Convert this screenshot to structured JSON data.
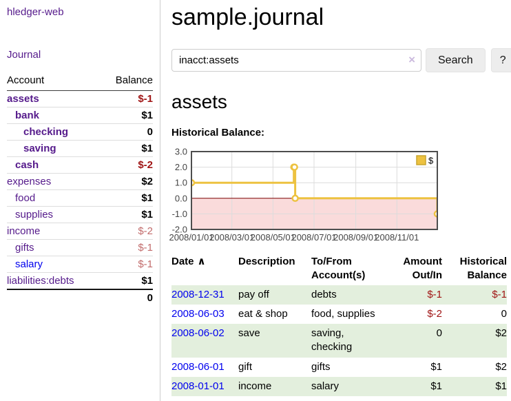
{
  "colors": {
    "link_purple": "#551a8b",
    "link_blue": "#0000ee",
    "negative_strong": "#a01515",
    "negative_muted": "#c26c6c",
    "row_green": "#e3efdd",
    "chart_line": "#edc240",
    "chart_negative_fill": "#fadbdb",
    "chart_zero_line": "#7a0000",
    "chart_border": "#4d4d4d",
    "chart_grid": "#dcdcdc",
    "chart_tick_text": "#444444"
  },
  "sidebar": {
    "brand": "hledger-web",
    "nav": {
      "journal": "Journal"
    },
    "accounts": {
      "headers": {
        "account": "Account",
        "balance": "Balance"
      },
      "rows": [
        {
          "account": "assets",
          "balance": "$-1",
          "depth": 0,
          "matched": true,
          "negative": "strong"
        },
        {
          "account": "bank",
          "balance": "$1",
          "depth": 1,
          "matched": true,
          "negative": ""
        },
        {
          "account": "checking",
          "balance": "0",
          "depth": 2,
          "matched": true,
          "negative": ""
        },
        {
          "account": "saving",
          "balance": "$1",
          "depth": 2,
          "matched": true,
          "negative": ""
        },
        {
          "account": "cash",
          "balance": "$-2",
          "depth": 1,
          "matched": true,
          "negative": "strong"
        },
        {
          "account": "expenses",
          "balance": "$2",
          "depth": 0,
          "matched": false,
          "negative": ""
        },
        {
          "account": "food",
          "balance": "$1",
          "depth": 1,
          "matched": false,
          "negative": ""
        },
        {
          "account": "supplies",
          "balance": "$1",
          "depth": 1,
          "matched": false,
          "negative": ""
        },
        {
          "account": "income",
          "balance": "$-2",
          "depth": 0,
          "matched": false,
          "negative": "muted"
        },
        {
          "account": "gifts",
          "balance": "$-1",
          "depth": 1,
          "matched": false,
          "negative": "muted"
        },
        {
          "account": "salary",
          "balance": "$-1",
          "depth": 1,
          "matched": false,
          "negative": "muted",
          "unvisited": true
        },
        {
          "account": "liabilities:debts",
          "balance": "$1",
          "depth": 0,
          "matched": false,
          "negative": ""
        }
      ],
      "total": "0"
    }
  },
  "header": {
    "title": "sample.journal"
  },
  "search": {
    "value": "inacct:assets",
    "clear_icon": "×",
    "search_button": "Search",
    "help_button": "?"
  },
  "register": {
    "heading": "assets",
    "chart_label": "Historical Balance:"
  },
  "chart_data": {
    "type": "line",
    "title": "Historical Balance",
    "steps": true,
    "xlim": [
      "2008-01-01",
      "2008-12-31"
    ],
    "ylim": [
      -2,
      3
    ],
    "x_ticks": [
      {
        "date": "2008-01-01",
        "label": "2008/01/01"
      },
      {
        "date": "2008-03-01",
        "label": "2008/03/01"
      },
      {
        "date": "2008-05-01",
        "label": "2008/05/01"
      },
      {
        "date": "2008-07-01",
        "label": "2008/07/01"
      },
      {
        "date": "2008-09-01",
        "label": "2008/09/01"
      },
      {
        "date": "2008-11-01",
        "label": "2008/11/01"
      }
    ],
    "y_ticks": [
      {
        "value": 3,
        "label": "3.0"
      },
      {
        "value": 2,
        "label": "2.0"
      },
      {
        "value": 1,
        "label": "1.0"
      },
      {
        "value": 0,
        "label": "0.0"
      },
      {
        "value": -1,
        "label": "-1.0"
      },
      {
        "value": -2,
        "label": "-2.0"
      }
    ],
    "legend": {
      "label": "$",
      "position": "top-right"
    },
    "grid": true,
    "negative_region_shaded": true,
    "series": [
      {
        "name": "$",
        "points": [
          {
            "date": "2008-01-01",
            "value": 1
          },
          {
            "date": "2008-06-01",
            "value": 2
          },
          {
            "date": "2008-06-02",
            "value": 2
          },
          {
            "date": "2008-06-03",
            "value": 0
          },
          {
            "date": "2008-12-31",
            "value": -1
          }
        ]
      }
    ]
  },
  "transactions": {
    "headers": [
      {
        "lines": [
          "Date"
        ],
        "sort": "∧",
        "align": "left"
      },
      {
        "lines": [
          "Description"
        ],
        "align": "left"
      },
      {
        "lines": [
          "To/From",
          "Account(s)"
        ],
        "align": "left"
      },
      {
        "lines": [
          "Amount",
          "Out/In"
        ],
        "align": "right"
      },
      {
        "lines": [
          "Historical",
          "Balance"
        ],
        "align": "right"
      }
    ],
    "rows": [
      {
        "date": "2008-12-31",
        "description": "pay off",
        "accounts": "debts",
        "amount": "$-1",
        "balance": "$-1",
        "amount_negative": true,
        "balance_negative": true,
        "green": true
      },
      {
        "date": "2008-06-03",
        "description": "eat & shop",
        "accounts": "food, supplies",
        "amount": "$-2",
        "balance": "0",
        "amount_negative": true,
        "balance_negative": false,
        "green": false
      },
      {
        "date": "2008-06-02",
        "description": "save",
        "accounts": "saving, checking",
        "amount": "0",
        "balance": "$2",
        "amount_negative": false,
        "balance_negative": false,
        "green": true
      },
      {
        "date": "2008-06-01",
        "description": "gift",
        "accounts": "gifts",
        "amount": "$1",
        "balance": "$2",
        "amount_negative": false,
        "balance_negative": false,
        "green": false
      },
      {
        "date": "2008-01-01",
        "description": "income",
        "accounts": "salary",
        "amount": "$1",
        "balance": "$1",
        "amount_negative": false,
        "balance_negative": false,
        "green": true
      }
    ]
  }
}
